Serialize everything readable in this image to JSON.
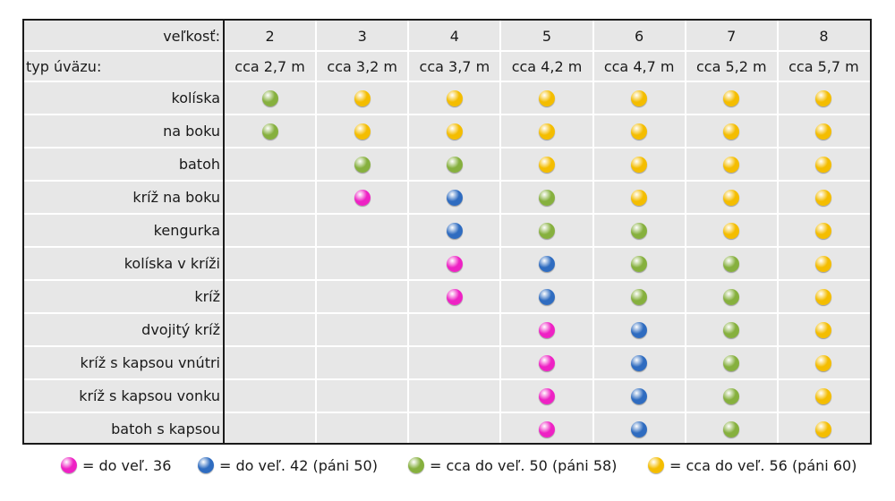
{
  "colors": {
    "pink": "#ee22c4",
    "blue": "#2f6cc0",
    "green": "#86b03e",
    "yellow": "#f4bd00"
  },
  "header": {
    "size_label": "veľkosť:",
    "type_label": "typ úväzu:",
    "sizes": [
      "2",
      "3",
      "4",
      "5",
      "6",
      "7",
      "8"
    ],
    "lengths": [
      "cca 2,7 m",
      "cca 3,2 m",
      "cca 3,7 m",
      "cca 4,2 m",
      "cca 4,7 m",
      "cca 5,2 m",
      "cca 5,7 m"
    ]
  },
  "rows": [
    {
      "name": "kolíska",
      "dots": [
        "green",
        "yellow",
        "yellow",
        "yellow",
        "yellow",
        "yellow",
        "yellow"
      ]
    },
    {
      "name": "na boku",
      "dots": [
        "green",
        "yellow",
        "yellow",
        "yellow",
        "yellow",
        "yellow",
        "yellow"
      ]
    },
    {
      "name": "batoh",
      "dots": [
        null,
        "green",
        "green",
        "yellow",
        "yellow",
        "yellow",
        "yellow"
      ]
    },
    {
      "name": "kríž na boku",
      "dots": [
        null,
        "pink",
        "blue",
        "green",
        "yellow",
        "yellow",
        "yellow"
      ]
    },
    {
      "name": "kengurka",
      "dots": [
        null,
        null,
        "blue",
        "green",
        "green",
        "yellow",
        "yellow"
      ]
    },
    {
      "name": "kolíska v kríži",
      "dots": [
        null,
        null,
        "pink",
        "blue",
        "green",
        "green",
        "yellow"
      ]
    },
    {
      "name": "kríž",
      "dots": [
        null,
        null,
        "pink",
        "blue",
        "green",
        "green",
        "yellow"
      ]
    },
    {
      "name": "dvojitý kríž",
      "dots": [
        null,
        null,
        null,
        "pink",
        "blue",
        "green",
        "yellow"
      ]
    },
    {
      "name": "kríž s kapsou vnútri",
      "dots": [
        null,
        null,
        null,
        "pink",
        "blue",
        "green",
        "yellow"
      ]
    },
    {
      "name": "kríž s kapsou vonku",
      "dots": [
        null,
        null,
        null,
        "pink",
        "blue",
        "green",
        "yellow"
      ]
    },
    {
      "name": "batoh s kapsou",
      "dots": [
        null,
        null,
        null,
        "pink",
        "blue",
        "green",
        "yellow"
      ]
    }
  ],
  "legend": [
    {
      "color": "pink",
      "text": "= do veľ. 36"
    },
    {
      "color": "blue",
      "text": "= do veľ. 42 (páni 50)"
    },
    {
      "color": "green",
      "text": "= cca do veľ. 50 (páni 58)"
    },
    {
      "color": "yellow",
      "text": "= cca do veľ. 56 (páni 60)"
    }
  ]
}
